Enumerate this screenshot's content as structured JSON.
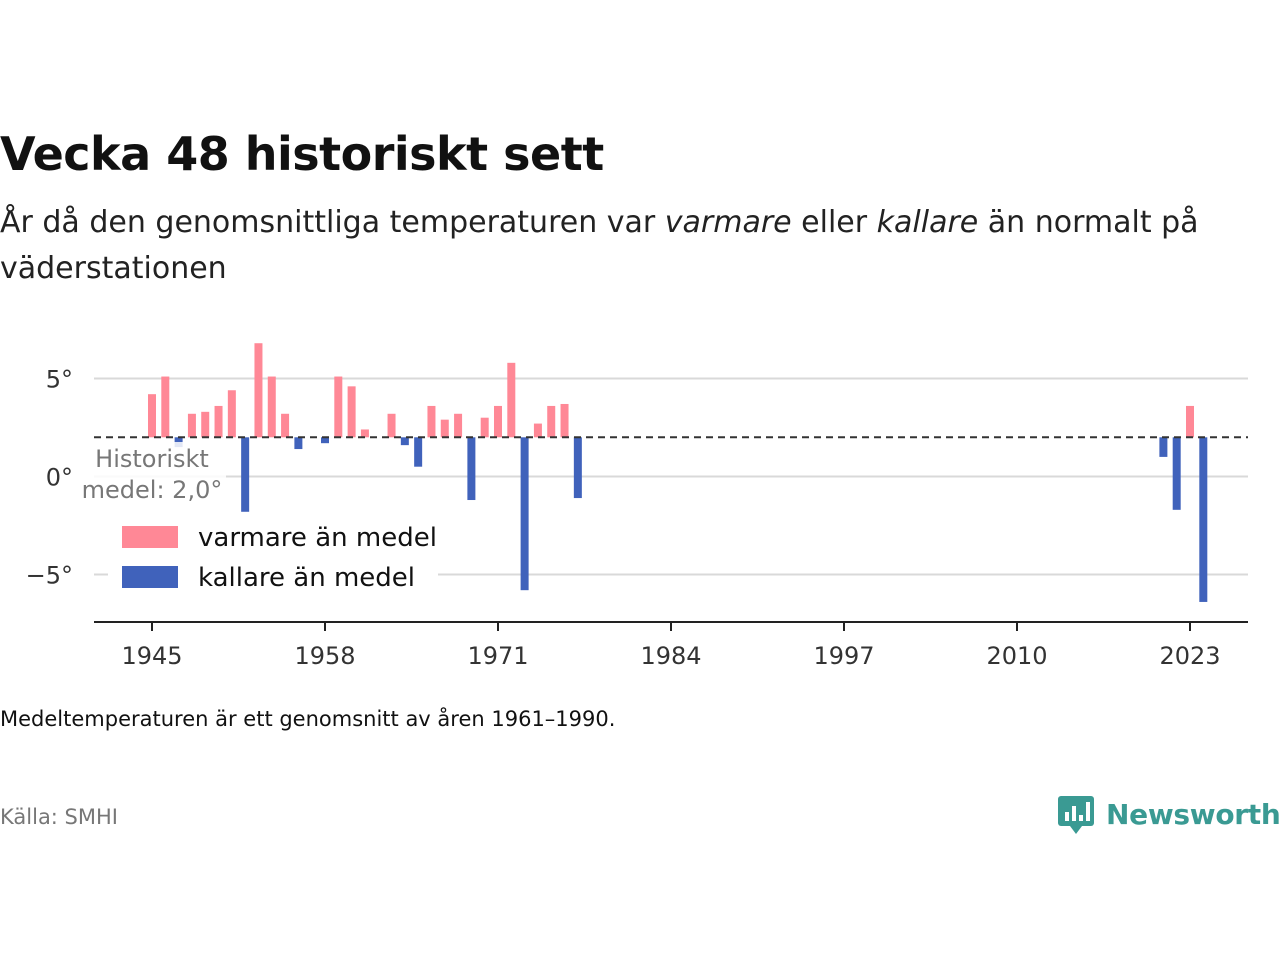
{
  "title": "Vecka 48 historiskt sett",
  "subtitle": {
    "part1": "År då den genomsnittliga temperaturen var ",
    "warm": "varmare",
    "part2": " eller ",
    "cold": "kallare",
    "part3": " än normalt på väderstationen"
  },
  "note": "Medeltemperaturen är ett genomsnitt av åren 1961–1990.",
  "source": "Källa: SMHI",
  "brand": "Newsworthy",
  "colors": {
    "warm": "#ff8896",
    "cold": "#4062bb",
    "brand": "#3a9a93"
  },
  "chart_data": {
    "type": "bar",
    "baseline": 2.0,
    "baseline_label": [
      "Historiskt",
      "medel: 2,0°"
    ],
    "xlim": [
      1941,
      2027
    ],
    "ylim": [
      -7.5,
      7.5
    ],
    "y_ticks": [
      {
        "value": 5,
        "label": "5°"
      },
      {
        "value": 0,
        "label": "0°"
      },
      {
        "value": -5,
        "label": "−5°"
      }
    ],
    "x_ticks": [
      1945,
      1958,
      1971,
      1984,
      1997,
      2010,
      2023
    ],
    "legend": [
      {
        "key": "warm",
        "label": "varmare än medel"
      },
      {
        "key": "cold",
        "label": "kallare än medel"
      }
    ],
    "legend_position": "bottom-left",
    "years": [
      1945,
      1946,
      1947,
      1948,
      1949,
      1950,
      1951,
      1952,
      1953,
      1954,
      1955,
      1956,
      1958,
      1959,
      1960,
      1961,
      1963,
      1964,
      1965,
      1966,
      1967,
      1968,
      1969,
      1970,
      1971,
      1972,
      1973,
      1974,
      1975,
      1976,
      1977,
      2021,
      2022,
      2023,
      2024
    ],
    "values": [
      4.2,
      5.1,
      1.5,
      3.2,
      3.3,
      3.6,
      4.4,
      -1.8,
      6.8,
      5.1,
      3.2,
      1.4,
      1.7,
      5.1,
      4.6,
      2.4,
      3.2,
      1.6,
      0.5,
      3.6,
      2.9,
      3.2,
      -1.2,
      3.0,
      3.6,
      5.8,
      -5.8,
      2.7,
      3.6,
      3.7,
      -1.1,
      1.0,
      -1.7,
      3.6,
      -6.4
    ]
  }
}
